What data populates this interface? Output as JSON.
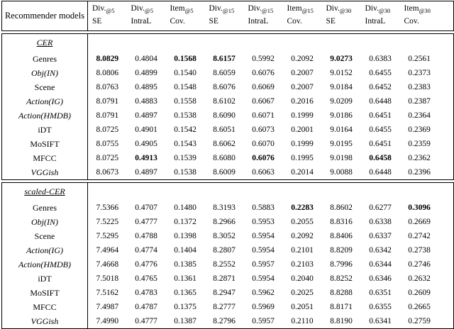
{
  "table": {
    "row_header": "Recommender models",
    "columns": [
      {
        "line1": "Div.",
        "sub": "@5",
        "line2": "SE"
      },
      {
        "line1": "Div.",
        "sub": "@5",
        "line2": "IntraL"
      },
      {
        "line1": "Item",
        "sub": "@5",
        "line2": "Cov."
      },
      {
        "line1": "Div.",
        "sub": "@15",
        "line2": "SE"
      },
      {
        "line1": "Div.",
        "sub": "@15",
        "line2": "IntraL"
      },
      {
        "line1": "Item",
        "sub": "@15",
        "line2": "Cov."
      },
      {
        "line1": "Div.",
        "sub": "@30",
        "line2": "SE"
      },
      {
        "line1": "Div.",
        "sub": "@30",
        "line2": "IntraL"
      },
      {
        "line1": "Item",
        "sub": "@30",
        "line2": "Cov."
      }
    ],
    "sections": [
      {
        "title": "CER",
        "rows": [
          {
            "label": "Genres",
            "italic": false,
            "values": [
              "8.0829",
              "0.4804",
              "0.1568",
              "8.6157",
              "0.5992",
              "0.2092",
              "9.0273",
              "0.6383",
              "0.2561"
            ],
            "bold": [
              0,
              2,
              3,
              6
            ]
          },
          {
            "label": "Obj(IN)",
            "italic": true,
            "values": [
              "8.0806",
              "0.4899",
              "0.1540",
              "8.6059",
              "0.6076",
              "0.2007",
              "9.0152",
              "0.6455",
              "0.2373"
            ],
            "bold": []
          },
          {
            "label": "Scene",
            "italic": false,
            "values": [
              "8.0763",
              "0.4895",
              "0.1548",
              "8.6076",
              "0.6069",
              "0.2007",
              "9.0184",
              "0.6452",
              "0.2383"
            ],
            "bold": []
          },
          {
            "label": "Action(IG)",
            "italic": true,
            "values": [
              "8.0791",
              "0.4883",
              "0.1558",
              "8.6102",
              "0.6067",
              "0.2016",
              "9.0209",
              "0.6448",
              "0.2387"
            ],
            "bold": []
          },
          {
            "label": "Action(HMDB)",
            "italic": true,
            "values": [
              "8.0791",
              "0.4897",
              "0.1538",
              "8.6090",
              "0.6071",
              "0.1999",
              "9.0186",
              "0.6451",
              "0.2364"
            ],
            "bold": []
          },
          {
            "label": "iDT",
            "italic": false,
            "values": [
              "8.0725",
              "0.4901",
              "0.1542",
              "8.6051",
              "0.6073",
              "0.2001",
              "9.0164",
              "0.6455",
              "0.2369"
            ],
            "bold": []
          },
          {
            "label": "MoSIFT",
            "italic": false,
            "values": [
              "8.0755",
              "0.4905",
              "0.1543",
              "8.6062",
              "0.6070",
              "0.1999",
              "9.0195",
              "0.6451",
              "0.2359"
            ],
            "bold": []
          },
          {
            "label": "MFCC",
            "italic": false,
            "values": [
              "8.0725",
              "0.4913",
              "0.1539",
              "8.6080",
              "0.6076",
              "0.1995",
              "9.0198",
              "0.6458",
              "0.2362"
            ],
            "bold": [
              1,
              4,
              7
            ]
          },
          {
            "label": "VGGish",
            "italic": true,
            "values": [
              "8.0673",
              "0.4897",
              "0.1538",
              "8.6009",
              "0.6063",
              "0.2014",
              "9.0088",
              "0.6448",
              "0.2396"
            ],
            "bold": []
          }
        ]
      },
      {
        "title": "scaled-CER",
        "rows": [
          {
            "label": "Genres",
            "italic": false,
            "values": [
              "7.5366",
              "0.4707",
              "0.1480",
              "8.3193",
              "0.5883",
              "0.2283",
              "8.8602",
              "0.6277",
              "0.3096"
            ],
            "bold": [
              5,
              8
            ]
          },
          {
            "label": "Obj(IN)",
            "italic": true,
            "values": [
              "7.5225",
              "0.4777",
              "0.1372",
              "8.2966",
              "0.5953",
              "0.2055",
              "8.8316",
              "0.6338",
              "0.2669"
            ],
            "bold": []
          },
          {
            "label": "Scene",
            "italic": false,
            "values": [
              "7.5295",
              "0.4788",
              "0.1398",
              "8.3052",
              "0.5954",
              "0.2092",
              "8.8406",
              "0.6337",
              "0.2742"
            ],
            "bold": []
          },
          {
            "label": "Action(IG)",
            "italic": true,
            "values": [
              "7.4964",
              "0.4774",
              "0.1404",
              "8.2807",
              "0.5954",
              "0.2101",
              "8.8209",
              "0.6342",
              "0.2738"
            ],
            "bold": []
          },
          {
            "label": "Action(HMDB)",
            "italic": true,
            "values": [
              "7.4668",
              "0.4776",
              "0.1385",
              "8.2552",
              "0.5957",
              "0.2103",
              "8.7996",
              "0.6344",
              "0.2746"
            ],
            "bold": []
          },
          {
            "label": "iDT",
            "italic": false,
            "values": [
              "7.5018",
              "0.4765",
              "0.1361",
              "8.2871",
              "0.5954",
              "0.2040",
              "8.8252",
              "0.6346",
              "0.2632"
            ],
            "bold": []
          },
          {
            "label": "MoSIFT",
            "italic": false,
            "values": [
              "7.5162",
              "0.4783",
              "0.1365",
              "8.2947",
              "0.5962",
              "0.2025",
              "8.8288",
              "0.6351",
              "0.2609"
            ],
            "bold": []
          },
          {
            "label": "MFCC",
            "italic": false,
            "values": [
              "7.4987",
              "0.4787",
              "0.1375",
              "8.2777",
              "0.5969",
              "0.2051",
              "8.8171",
              "0.6355",
              "0.2665"
            ],
            "bold": []
          },
          {
            "label": "VGGish",
            "italic": true,
            "values": [
              "7.4990",
              "0.4777",
              "0.1387",
              "8.2796",
              "0.5957",
              "0.2110",
              "8.8190",
              "0.6341",
              "0.2759"
            ],
            "bold": []
          }
        ]
      }
    ]
  },
  "colors": {
    "border": "#000000",
    "text": "#000000",
    "background": "#ffffff"
  }
}
